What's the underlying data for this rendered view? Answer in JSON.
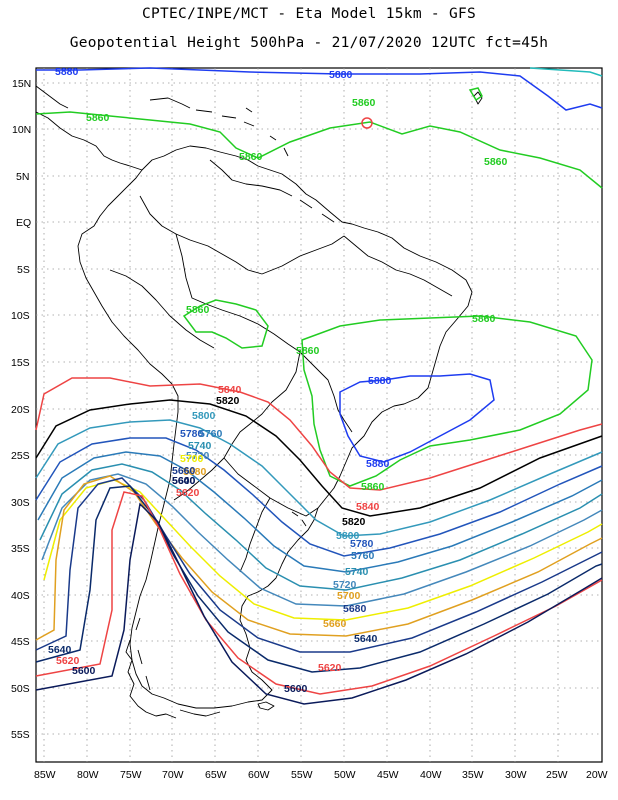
{
  "title": {
    "line1": "CPTEC/INPE/MCT -  Eta Model 15km - GFS",
    "line2": "Geopotential Height 500hPa - 21/07/2020 12UTC fct=45h"
  },
  "axes": {
    "lat_ticks": [
      "15N",
      "10N",
      "5N",
      "EQ",
      "5S",
      "10S",
      "15S",
      "20S",
      "25S",
      "30S",
      "35S",
      "40S",
      "45S",
      "50S",
      "55S"
    ],
    "lon_ticks": [
      "85W",
      "80W",
      "75W",
      "70W",
      "65W",
      "60W",
      "55W",
      "50W",
      "45W",
      "40W",
      "35W",
      "30W",
      "25W",
      "20W"
    ]
  },
  "colors": {
    "c5880": "#1e3cf0",
    "c5860": "#22cc22",
    "c5840": "#ee4444",
    "c5820": "#000000",
    "c5800": "#3399bb",
    "c5780": "#2255bb",
    "c5760": "#2a7ab8",
    "c5740": "#2a8fb0",
    "c5720": "#4488bb",
    "c5700": "#eeee00",
    "c5680": "#e0a020",
    "c5660": "#1a3a8a",
    "c5640": "#0a2a6a",
    "c5620": "#ee4444",
    "c5600": "#0a1a5a",
    "c5860_cyan": "#22bbbb",
    "coast": "#000000",
    "grid": "#999999"
  },
  "contour_labels": {
    "l1": "5880",
    "l2": "5880",
    "l3": "5860",
    "l4": "5860",
    "l5": "5860",
    "l6": "5860",
    "l7": "5860",
    "l8": "5860",
    "l9": "5860",
    "l10": "5880",
    "l11": "5880",
    "l12": "5860",
    "l13": "5840",
    "l14": "5820",
    "l15": "5800",
    "l16": "5780",
    "l17": "5760",
    "l18": "5740",
    "l19": "5720",
    "l20": "5700",
    "l21": "5680",
    "l22": "5660",
    "l23": "5640",
    "l24": "5620",
    "l25": "5600",
    "l26": "5840",
    "l27": "5820",
    "l28": "5800",
    "l29": "5780",
    "l30": "5760",
    "l31": "5740",
    "l32": "5720",
    "l33": "5700",
    "l34": "5680",
    "l35": "5660",
    "l36": "5640",
    "l37": "5620",
    "l38": "5600",
    "l39": "5640",
    "l40": "5620",
    "l41": "5600"
  }
}
